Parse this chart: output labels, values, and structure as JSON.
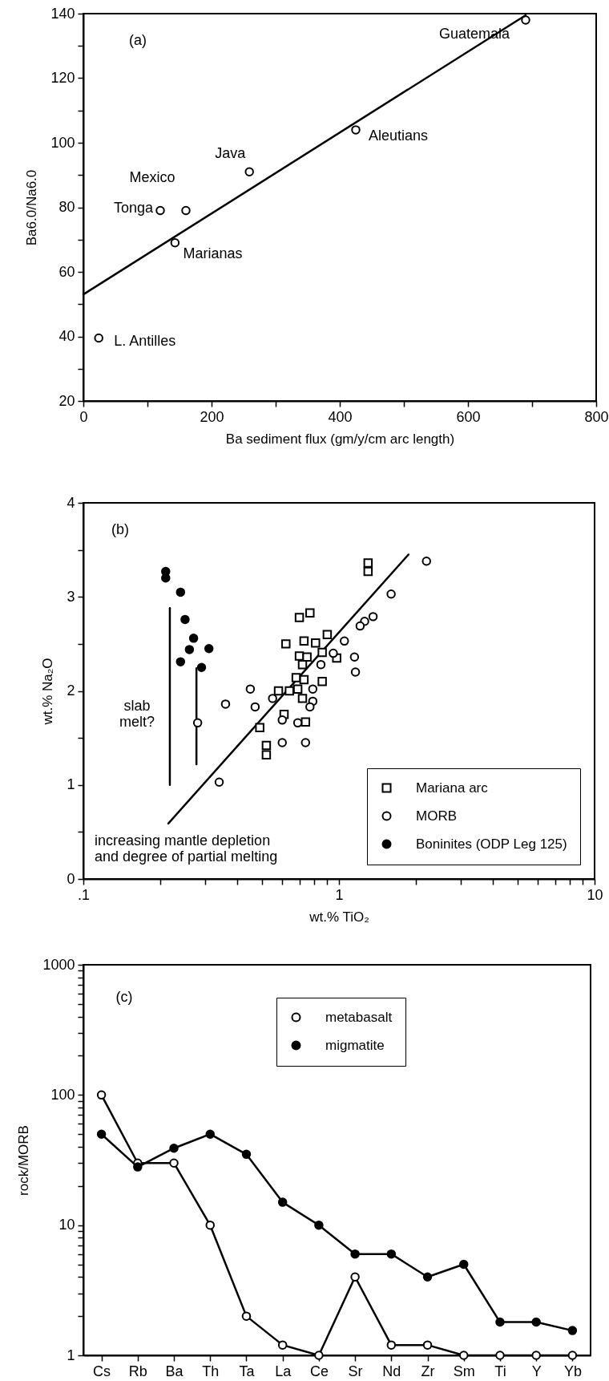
{
  "chart_data": [
    {
      "type": "scatter",
      "xlabel": "Ba sediment flux (gm/y/cm arc length)",
      "ylabel": "Ba6.0/Na6.0",
      "marker": "circle",
      "grid": false,
      "annotations": [
        "(a)",
        {
          "text": "Guatemala",
          "x": 690,
          "y": 138
        },
        {
          "text": "Aleutians",
          "x": 425,
          "y": 104
        },
        {
          "text": "Java",
          "x": 259,
          "y": 91
        },
        {
          "text": "Mexico",
          "x": 160,
          "y": 79
        },
        {
          "text": "Tonga",
          "x": 120,
          "y": 79
        },
        {
          "text": "Marianas",
          "x": 143,
          "y": 69
        },
        {
          "text": "L. Antilles",
          "x": 24,
          "y": 39.5
        }
      ],
      "x": [
        690,
        425,
        259,
        160,
        120,
        143,
        24
      ],
      "series": [
        {
          "color": "#000000",
          "values": [
            138,
            104,
            91,
            79,
            79,
            69,
            39.5
          ]
        },
        {
          "type": "line",
          "marker": "none",
          "color": "#000000",
          "x": [
            0,
            690
          ],
          "values": [
            53,
            139.5
          ]
        }
      ],
      "xlim": [
        0,
        800
      ],
      "ylim": [
        20,
        140
      ],
      "xticks": [
        0,
        {
          "value": 100,
          "label": null
        },
        200,
        {
          "value": 300,
          "label": null
        },
        400,
        {
          "value": 500,
          "label": null
        },
        600,
        {
          "value": 700,
          "label": null
        },
        800
      ],
      "yticks": [
        20,
        {
          "value": 30,
          "label": null
        },
        40,
        {
          "value": 50,
          "label": null
        },
        60,
        {
          "value": 70,
          "label": null
        },
        80,
        {
          "value": 90,
          "label": null
        },
        100,
        {
          "value": 110,
          "label": null
        },
        120,
        {
          "value": 130,
          "label": null
        },
        140
      ]
    },
    {
      "type": "scatter",
      "xlabel": "wt.% TiO₂",
      "ylabel": "wt.% Na₂O",
      "log": "x",
      "legend": "bottom right",
      "grid": false,
      "annotations": [
        "(b)",
        "slab melt?",
        "increasing mantle depletion and degree of partial melting"
      ],
      "series": [
        {
          "name": "Mariana arc",
          "color": "#000000",
          "marker": "square",
          "x": [
            1.3,
            1.3,
            0.7,
            0.77,
            0.9,
            0.62,
            0.73,
            0.81,
            0.7,
            0.75,
            0.72,
            0.98,
            0.86,
            0.68,
            0.73,
            0.86,
            0.58,
            0.64,
            0.69,
            0.72,
            0.49,
            0.61,
            0.74,
            0.52,
            0.52
          ],
          "values": [
            3.36,
            3.27,
            2.78,
            2.83,
            2.6,
            2.5,
            2.53,
            2.51,
            2.37,
            2.36,
            2.28,
            2.35,
            2.41,
            2.14,
            2.12,
            2.1,
            2.0,
            2.0,
            2.02,
            1.92,
            1.61,
            1.75,
            1.67,
            1.42,
            1.32
          ]
        },
        {
          "name": "MORB",
          "color": "#000000",
          "marker": "circle",
          "x": [
            2.2,
            1.6,
            1.36,
            1.26,
            1.21,
            1.05,
            0.95,
            1.15,
            1.16,
            0.85,
            0.45,
            0.36,
            0.47,
            0.55,
            0.79,
            0.79,
            0.77,
            0.6,
            0.69,
            0.6,
            0.74,
            0.28,
            0.34
          ],
          "values": [
            3.38,
            3.03,
            2.79,
            2.74,
            2.69,
            2.53,
            2.4,
            2.36,
            2.2,
            2.28,
            2.02,
            1.86,
            1.83,
            1.92,
            2.02,
            1.89,
            1.83,
            1.69,
            1.66,
            1.45,
            1.45,
            1.66,
            1.03
          ]
        },
        {
          "name": "Boninites (ODP Leg 125)",
          "color": "#000000",
          "marker": "circle",
          "x": [
            0.21,
            0.21,
            0.24,
            0.25,
            0.27,
            0.26,
            0.31,
            0.24,
            0.29
          ],
          "values": [
            3.27,
            3.2,
            3.05,
            2.76,
            2.56,
            2.44,
            2.45,
            2.31,
            2.25
          ]
        },
        {
          "type": "line",
          "marker": "none",
          "color": "#000000",
          "x": [
            1.87,
            0.215
          ],
          "values": [
            3.45,
            0.59
          ]
        },
        {
          "type": "line",
          "marker": "none",
          "color": "#000000",
          "x": [
            0.218,
            0.218
          ],
          "values": [
            1.0,
            2.88
          ]
        },
        {
          "type": "line",
          "marker": "none",
          "color": "#000000",
          "x": [
            0.277,
            0.277
          ],
          "values": [
            1.22,
            2.24
          ]
        }
      ],
      "xlim": [
        0.1,
        10
      ],
      "ylim": [
        0,
        4
      ],
      "xticks": [
        {
          "value": 0.1,
          "label": ".1"
        },
        {
          "value": 0.2,
          "label": null
        },
        {
          "value": 0.3,
          "label": null
        },
        {
          "value": 0.4,
          "label": null
        },
        {
          "value": 0.5,
          "label": null
        },
        {
          "value": 0.6,
          "label": null
        },
        {
          "value": 0.7,
          "label": null
        },
        {
          "value": 0.8,
          "label": null
        },
        {
          "value": 0.9,
          "label": null
        },
        1,
        {
          "value": 2,
          "label": null
        },
        {
          "value": 3,
          "label": null
        },
        {
          "value": 4,
          "label": null
        },
        {
          "value": 5,
          "label": null
        },
        {
          "value": 6,
          "label": null
        },
        {
          "value": 7,
          "label": null
        },
        {
          "value": 8,
          "label": null
        },
        {
          "value": 9,
          "label": null
        },
        10
      ],
      "yticks": [
        0,
        {
          "value": 0.5,
          "label": null
        },
        1,
        {
          "value": 1.5,
          "label": null
        },
        2,
        {
          "value": 2.5,
          "label": null
        },
        3,
        {
          "value": 3.5,
          "label": null
        },
        4
      ]
    },
    {
      "type": "line",
      "ylabel": "rock/MORB",
      "log": true,
      "marker": "circle",
      "legend": "top right",
      "grid": false,
      "annotations": [
        "(c)"
      ],
      "categories": [
        "Cs",
        "Rb",
        "Ba",
        "Th",
        "Ta",
        "La",
        "Ce",
        "Sr",
        "Nd",
        "Zr",
        "Sm",
        "Ti",
        "Y",
        "Yb"
      ],
      "series": [
        {
          "name": "metabasalt",
          "color": "#000000",
          "values": [
            100,
            30,
            30,
            10,
            2,
            1.2,
            1,
            4,
            1.2,
            1.2,
            1,
            1,
            1,
            1
          ]
        },
        {
          "name": "migmatite",
          "color": "#000000",
          "values": [
            50,
            28,
            39,
            50,
            35,
            15,
            10,
            6,
            6,
            4,
            5,
            1.8,
            1.8,
            1.55
          ]
        }
      ],
      "ylim": [
        1,
        1000
      ],
      "yticks": [
        1,
        {
          "value": 2,
          "label": null
        },
        {
          "value": 3,
          "label": null
        },
        {
          "value": 4,
          "label": null
        },
        {
          "value": 5,
          "label": null
        },
        {
          "value": 6,
          "label": null
        },
        {
          "value": 7,
          "label": null
        },
        {
          "value": 8,
          "label": null
        },
        {
          "value": 9,
          "label": null
        },
        10,
        {
          "value": 20,
          "label": null
        },
        {
          "value": 30,
          "label": null
        },
        {
          "value": 40,
          "label": null
        },
        {
          "value": 50,
          "label": null
        },
        {
          "value": 60,
          "label": null
        },
        {
          "value": 70,
          "label": null
        },
        {
          "value": 80,
          "label": null
        },
        {
          "value": 90,
          "label": null
        },
        100,
        {
          "value": 200,
          "label": null
        },
        {
          "value": 300,
          "label": null
        },
        {
          "value": 400,
          "label": null
        },
        {
          "value": 500,
          "label": null
        },
        {
          "value": 600,
          "label": null
        },
        {
          "value": 700,
          "label": null
        },
        {
          "value": 800,
          "label": null
        },
        {
          "value": 900,
          "label": null
        },
        1000
      ]
    }
  ]
}
